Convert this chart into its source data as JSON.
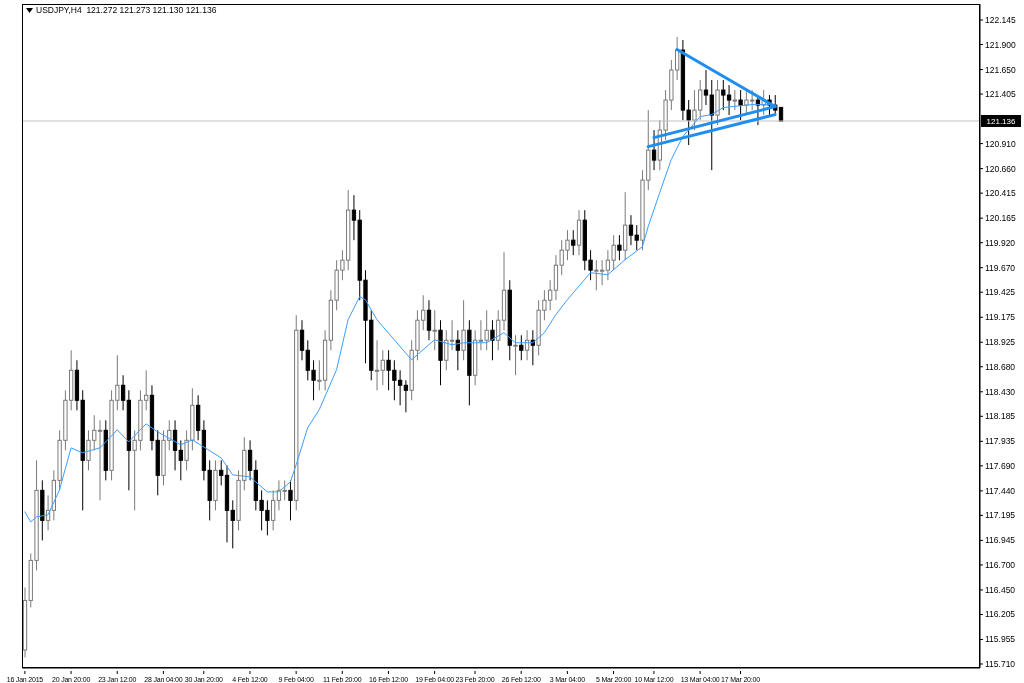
{
  "chart_data": {
    "type": "candlestick",
    "title": "USDJPY,H4  121.272 121.273 121.130 121.136",
    "categories": [
      "16 Jan 2015",
      null,
      null,
      null,
      null,
      null,
      null,
      null,
      "20 Jan 20:00",
      null,
      null,
      null,
      null,
      null,
      null,
      null,
      "23 Jan 12:00",
      null,
      null,
      null,
      null,
      null,
      null,
      null,
      "28 Jan 04:00",
      null,
      null,
      null,
      null,
      null,
      null,
      "30 Jan 20:00",
      null,
      null,
      null,
      null,
      null,
      null,
      null,
      "4 Feb 12:00",
      null,
      null,
      null,
      null,
      null,
      null,
      null,
      "9 Feb 04:00",
      null,
      null,
      null,
      null,
      null,
      null,
      null,
      "11 Feb 20:00",
      null,
      null,
      null,
      null,
      null,
      null,
      null,
      "16 Feb 12:00",
      null,
      null,
      null,
      null,
      null,
      null,
      null,
      "19 Feb 04:00",
      null,
      null,
      null,
      null,
      null,
      null,
      "23 Feb 20:00",
      null,
      null,
      null,
      null,
      null,
      null,
      null,
      "26 Feb 12:00",
      null,
      null,
      null,
      null,
      null,
      null,
      null,
      "3 Mar 04:00",
      null,
      null,
      null,
      null,
      null,
      null,
      null,
      "5 Mar 20:00",
      null,
      null,
      null,
      null,
      null,
      null,
      "10 Mar 12:00",
      null,
      null,
      null,
      null,
      null,
      null,
      null,
      "13 Mar 04:00",
      null,
      null,
      null,
      null,
      null,
      null,
      "17 Mar 20:00",
      null,
      null,
      null,
      null,
      null,
      null,
      null,
      null,
      null,
      null,
      null,
      null,
      null,
      null,
      null,
      null,
      null,
      null,
      null,
      null,
      null,
      null,
      null,
      null,
      null,
      null,
      null,
      null,
      null,
      null,
      null,
      null,
      null,
      null,
      null,
      null,
      null,
      null,
      null,
      null,
      null
    ],
    "ohlc": [
      [
        115.85,
        116.475,
        115.775,
        116.345
      ],
      [
        116.345,
        116.815,
        116.275,
        116.745
      ],
      [
        116.745,
        117.745,
        116.645,
        117.445
      ],
      [
        117.445,
        117.545,
        116.945,
        117.145
      ],
      [
        117.145,
        117.395,
        117.045,
        117.245
      ],
      [
        117.245,
        117.645,
        117.145,
        117.545
      ],
      [
        117.545,
        118.045,
        117.445,
        117.945
      ],
      [
        117.945,
        118.445,
        117.845,
        118.345
      ],
      [
        118.345,
        118.845,
        118.245,
        118.645
      ],
      [
        118.645,
        118.745,
        118.245,
        118.345
      ],
      [
        118.345,
        118.445,
        117.245,
        117.745
      ],
      [
        117.745,
        118.045,
        117.645,
        117.945
      ],
      [
        117.945,
        118.195,
        117.845,
        118.045
      ],
      [
        118.045,
        118.145,
        117.345,
        118.045
      ],
      [
        118.045,
        118.145,
        117.545,
        117.645
      ],
      [
        117.645,
        118.445,
        117.545,
        118.345
      ],
      [
        118.345,
        118.795,
        118.245,
        118.495
      ],
      [
        118.495,
        118.595,
        118.245,
        118.345
      ],
      [
        118.345,
        118.445,
        117.445,
        117.845
      ],
      [
        117.845,
        118.045,
        117.245,
        117.945
      ],
      [
        117.945,
        118.445,
        117.845,
        118.345
      ],
      [
        118.345,
        118.645,
        118.245,
        118.395
      ],
      [
        118.395,
        118.495,
        117.845,
        117.945
      ],
      [
        117.945,
        118.045,
        117.395,
        117.595
      ],
      [
        117.595,
        118.045,
        117.495,
        117.945
      ],
      [
        117.945,
        118.145,
        117.845,
        118.045
      ],
      [
        118.045,
        118.145,
        117.645,
        117.845
      ],
      [
        117.845,
        117.945,
        117.545,
        117.745
      ],
      [
        117.745,
        118.045,
        117.645,
        117.945
      ],
      [
        117.945,
        118.465,
        117.845,
        118.295
      ],
      [
        118.295,
        118.395,
        117.945,
        118.045
      ],
      [
        118.045,
        118.145,
        117.545,
        117.645
      ],
      [
        117.645,
        117.745,
        117.145,
        117.345
      ],
      [
        117.345,
        117.745,
        117.245,
        117.645
      ],
      [
        117.645,
        117.745,
        117.495,
        117.595
      ],
      [
        117.595,
        117.695,
        116.925,
        117.245
      ],
      [
        117.245,
        117.345,
        116.865,
        117.145
      ],
      [
        117.145,
        117.645,
        117.045,
        117.545
      ],
      [
        117.545,
        117.975,
        117.445,
        117.845
      ],
      [
        117.845,
        117.945,
        117.545,
        117.645
      ],
      [
        117.645,
        117.745,
        117.245,
        117.345
      ],
      [
        117.345,
        117.445,
        117.045,
        117.245
      ],
      [
        117.245,
        117.345,
        116.995,
        117.145
      ],
      [
        117.145,
        117.445,
        117.045,
        117.345
      ],
      [
        117.345,
        117.545,
        117.245,
        117.445
      ],
      [
        117.445,
        117.545,
        117.345,
        117.445
      ],
      [
        117.445,
        117.545,
        117.145,
        117.345
      ],
      [
        117.345,
        119.195,
        117.245,
        119.045
      ],
      [
        119.045,
        119.145,
        118.745,
        118.845
      ],
      [
        118.845,
        118.945,
        118.545,
        118.645
      ],
      [
        118.645,
        118.745,
        118.345,
        118.545
      ],
      [
        118.545,
        118.745,
        118.445,
        118.545
      ],
      [
        118.545,
        119.045,
        118.445,
        118.945
      ],
      [
        118.945,
        119.445,
        118.845,
        119.345
      ],
      [
        119.345,
        119.745,
        119.245,
        119.645
      ],
      [
        119.645,
        119.845,
        119.545,
        119.745
      ],
      [
        119.745,
        120.445,
        119.645,
        120.245
      ],
      [
        120.245,
        120.395,
        119.945,
        120.145
      ],
      [
        120.145,
        120.245,
        119.345,
        119.545
      ],
      [
        119.545,
        119.645,
        118.715,
        119.145
      ],
      [
        119.145,
        119.245,
        118.545,
        118.645
      ],
      [
        118.645,
        118.945,
        118.445,
        118.645
      ],
      [
        118.645,
        118.845,
        118.495,
        118.745
      ],
      [
        118.745,
        118.845,
        118.445,
        118.645
      ],
      [
        118.645,
        118.745,
        118.345,
        118.545
      ],
      [
        118.545,
        118.645,
        118.295,
        118.495
      ],
      [
        118.495,
        118.545,
        118.225,
        118.445
      ],
      [
        118.445,
        118.945,
        118.345,
        118.845
      ],
      [
        118.845,
        119.245,
        118.745,
        119.145
      ],
      [
        119.145,
        119.395,
        119.045,
        119.245
      ],
      [
        119.245,
        119.345,
        118.945,
        119.045
      ],
      [
        119.045,
        119.245,
        118.845,
        119.045
      ],
      [
        119.045,
        119.145,
        118.495,
        118.745
      ],
      [
        118.745,
        119.045,
        118.645,
        118.945
      ],
      [
        118.945,
        119.145,
        118.845,
        118.945
      ],
      [
        118.945,
        119.045,
        118.645,
        118.845
      ],
      [
        118.845,
        119.345,
        118.745,
        119.045
      ],
      [
        119.045,
        119.145,
        118.295,
        118.595
      ],
      [
        118.595,
        119.045,
        118.495,
        118.945
      ],
      [
        118.945,
        119.145,
        118.845,
        118.945
      ],
      [
        118.945,
        119.245,
        118.845,
        119.045
      ],
      [
        119.045,
        119.145,
        118.745,
        118.945
      ],
      [
        118.945,
        119.245,
        118.845,
        119.145
      ],
      [
        119.145,
        119.825,
        119.045,
        119.445
      ],
      [
        119.445,
        119.545,
        118.745,
        118.895
      ],
      [
        118.895,
        118.995,
        118.595,
        118.895
      ],
      [
        118.895,
        118.995,
        118.745,
        118.845
      ],
      [
        118.845,
        119.045,
        118.745,
        118.945
      ],
      [
        118.945,
        119.045,
        118.695,
        118.895
      ],
      [
        118.895,
        119.345,
        118.795,
        119.245
      ],
      [
        119.245,
        119.445,
        119.145,
        119.345
      ],
      [
        119.345,
        119.545,
        119.245,
        119.445
      ],
      [
        119.445,
        119.795,
        119.345,
        119.695
      ],
      [
        119.695,
        119.945,
        119.595,
        119.845
      ],
      [
        119.845,
        120.045,
        119.745,
        119.945
      ],
      [
        119.945,
        120.045,
        119.795,
        119.895
      ],
      [
        119.895,
        120.245,
        119.795,
        120.145
      ],
      [
        120.145,
        120.245,
        119.645,
        119.745
      ],
      [
        119.745,
        119.845,
        119.545,
        119.645
      ],
      [
        119.645,
        119.745,
        119.445,
        119.645
      ],
      [
        119.645,
        119.745,
        119.495,
        119.645
      ],
      [
        119.645,
        119.845,
        119.545,
        119.745
      ],
      [
        119.745,
        119.995,
        119.645,
        119.895
      ],
      [
        119.895,
        119.995,
        119.745,
        119.845
      ],
      [
        119.845,
        120.425,
        119.745,
        120.095
      ],
      [
        120.095,
        120.195,
        119.895,
        119.995
      ],
      [
        119.995,
        120.095,
        119.845,
        119.945
      ],
      [
        119.945,
        120.645,
        119.845,
        120.545
      ],
      [
        120.545,
        121.245,
        120.445,
        120.845
      ],
      [
        120.845,
        121.045,
        120.645,
        120.745
      ],
      [
        120.745,
        121.145,
        120.645,
        121.045
      ],
      [
        121.045,
        121.445,
        120.945,
        121.345
      ],
      [
        121.345,
        121.745,
        121.245,
        121.645
      ],
      [
        121.645,
        121.975,
        121.545,
        121.845
      ],
      [
        121.845,
        121.945,
        121.145,
        121.245
      ],
      [
        121.245,
        121.345,
        120.895,
        121.145
      ],
      [
        121.145,
        121.445,
        121.045,
        121.245
      ],
      [
        121.245,
        121.545,
        121.145,
        121.445
      ],
      [
        121.445,
        121.645,
        121.295,
        121.395
      ],
      [
        121.395,
        121.545,
        120.645,
        121.195
      ],
      [
        121.195,
        121.545,
        121.095,
        121.445
      ],
      [
        121.445,
        121.545,
        121.245,
        121.395
      ],
      [
        121.395,
        121.495,
        121.195,
        121.345
      ],
      [
        121.345,
        121.445,
        121.245,
        121.345
      ],
      [
        121.345,
        121.445,
        121.145,
        121.295
      ],
      [
        121.295,
        121.445,
        121.195,
        121.345
      ],
      [
        121.345,
        121.445,
        121.245,
        121.345
      ],
      [
        121.345,
        121.395,
        121.095,
        121.295
      ],
      [
        121.295,
        121.445,
        121.195,
        121.345
      ],
      [
        121.345,
        121.395,
        121.195,
        121.295
      ],
      [
        121.295,
        121.395,
        121.195,
        121.245
      ],
      [
        121.272,
        121.273,
        121.13,
        121.136
      ],
      null,
      null,
      null,
      null,
      null,
      null,
      null,
      null,
      null,
      null,
      null,
      null,
      null,
      null,
      null,
      null,
      null,
      null,
      null,
      null,
      null,
      null,
      null,
      null,
      null,
      null,
      null,
      null,
      null,
      null,
      null,
      null,
      null,
      null
    ],
    "series": [
      {
        "type": "line",
        "color": "#3d9eff",
        "values": [
          117.23,
          117.13,
          117.18,
          null,
          117.2,
          null,
          117.45,
          null,
          117.87,
          null,
          117.82,
          null,
          null,
          117.87,
          null,
          null,
          118.05,
          null,
          117.93,
          null,
          null,
          118.11,
          null,
          118.03,
          null,
          null,
          null,
          117.9,
          null,
          117.95,
          null,
          null,
          null,
          null,
          117.77,
          null,
          117.6,
          null,
          null,
          117.58,
          null,
          null,
          117.43,
          null,
          117.43,
          null,
          117.53,
          117.7,
          null,
          118.07,
          null,
          118.25,
          null,
          null,
          118.65,
          null,
          119.15,
          null,
          119.38,
          119.35,
          null,
          119.15,
          null,
          null,
          118.95,
          null,
          null,
          118.75,
          null,
          null,
          null,
          118.95,
          null,
          null,
          118.9,
          null,
          118.92,
          null,
          null,
          null,
          118.92,
          null,
          null,
          119.02,
          null,
          118.92,
          null,
          null,
          118.92,
          null,
          119.02,
          null,
          119.2,
          null,
          119.35,
          null,
          null,
          null,
          119.62,
          null,
          null,
          119.6,
          null,
          null,
          119.75,
          null,
          null,
          119.88,
          120.08,
          null,
          120.42,
          null,
          120.75,
          null,
          120.98,
          null,
          null,
          121.18,
          null,
          121.2,
          null,
          121.27,
          null,
          null,
          null,
          null,
          121.3,
          null,
          null,
          null,
          121.3,
          null,
          null,
          null,
          null,
          null,
          null,
          null,
          null,
          null,
          null,
          null,
          null,
          null,
          null,
          null,
          null,
          null,
          null,
          null,
          null,
          null,
          null,
          null,
          null,
          null,
          null,
          null,
          null,
          null,
          null,
          null,
          null,
          null,
          null,
          null
        ]
      },
      {
        "type": "line",
        "color": "#1e8ff0",
        "values": [
          null,
          null,
          null,
          null,
          null,
          null,
          null,
          null,
          null,
          null,
          null,
          null,
          null,
          null,
          null,
          null,
          null,
          null,
          null,
          null,
          null,
          null,
          null,
          null,
          null,
          null,
          null,
          null,
          null,
          null,
          null,
          null,
          null,
          null,
          null,
          null,
          null,
          null,
          null,
          null,
          null,
          null,
          null,
          null,
          null,
          null,
          null,
          null,
          null,
          null,
          null,
          null,
          null,
          null,
          null,
          null,
          null,
          null,
          null,
          null,
          null,
          null,
          null,
          null,
          null,
          null,
          null,
          null,
          null,
          null,
          null,
          null,
          null,
          null,
          null,
          null,
          null,
          null,
          null,
          null,
          null,
          null,
          null,
          null,
          null,
          null,
          null,
          null,
          null,
          null,
          null,
          null,
          null,
          null,
          null,
          null,
          null,
          null,
          null,
          null,
          null,
          null,
          null,
          null,
          null,
          null,
          null,
          null,
          null,
          null,
          null,
          null,
          null,
          121.85,
          null,
          null,
          null,
          null,
          null,
          null,
          null,
          null,
          null,
          null,
          null,
          null,
          null,
          null,
          null,
          null,
          121.28,
          null,
          null,
          null,
          null,
          null,
          null,
          null,
          null,
          null,
          null,
          null,
          null,
          null,
          null,
          null,
          null,
          null,
          null,
          null,
          null,
          null,
          null,
          null,
          null,
          null,
          null,
          null,
          null,
          null,
          null,
          null,
          null,
          null,
          null,
          null
        ]
      },
      {
        "type": "line",
        "color": "#1e8ff0",
        "values": [
          null,
          null,
          null,
          null,
          null,
          null,
          null,
          null,
          null,
          null,
          null,
          null,
          null,
          null,
          null,
          null,
          null,
          null,
          null,
          null,
          null,
          null,
          null,
          null,
          null,
          null,
          null,
          null,
          null,
          null,
          null,
          null,
          null,
          null,
          null,
          null,
          null,
          null,
          null,
          null,
          null,
          null,
          null,
          null,
          null,
          null,
          null,
          null,
          null,
          null,
          null,
          null,
          null,
          null,
          null,
          null,
          null,
          null,
          null,
          null,
          null,
          null,
          null,
          null,
          null,
          null,
          null,
          null,
          null,
          null,
          null,
          null,
          null,
          null,
          null,
          null,
          null,
          null,
          null,
          null,
          null,
          null,
          null,
          null,
          null,
          null,
          null,
          null,
          null,
          null,
          null,
          null,
          null,
          null,
          null,
          null,
          null,
          null,
          null,
          null,
          null,
          null,
          null,
          null,
          null,
          null,
          null,
          null,
          null,
          120.97,
          null,
          null,
          null,
          null,
          null,
          null,
          null,
          null,
          null,
          null,
          null,
          null,
          null,
          null,
          null,
          null,
          null,
          null,
          null,
          null,
          121.28,
          null,
          null,
          null,
          null,
          null,
          null,
          null,
          null,
          null,
          null,
          null,
          null,
          null,
          null,
          null,
          null,
          null,
          null,
          null,
          null,
          null,
          null,
          null,
          null,
          null,
          null,
          null,
          null,
          null,
          null,
          null,
          null,
          null,
          null,
          null
        ]
      },
      {
        "type": "line",
        "color": "#1e8ff0",
        "values": [
          null,
          null,
          null,
          null,
          null,
          null,
          null,
          null,
          null,
          null,
          null,
          null,
          null,
          null,
          null,
          null,
          null,
          null,
          null,
          null,
          null,
          null,
          null,
          null,
          null,
          null,
          null,
          null,
          null,
          null,
          null,
          null,
          null,
          null,
          null,
          null,
          null,
          null,
          null,
          null,
          null,
          null,
          null,
          null,
          null,
          null,
          null,
          null,
          null,
          null,
          null,
          null,
          null,
          null,
          null,
          null,
          null,
          null,
          null,
          null,
          null,
          null,
          null,
          null,
          null,
          null,
          null,
          null,
          null,
          null,
          null,
          null,
          null,
          null,
          null,
          null,
          null,
          null,
          null,
          null,
          null,
          null,
          null,
          null,
          null,
          null,
          null,
          null,
          null,
          null,
          null,
          null,
          null,
          null,
          null,
          null,
          null,
          null,
          null,
          null,
          null,
          null,
          null,
          null,
          null,
          null,
          null,
          null,
          120.88,
          null,
          null,
          null,
          null,
          null,
          null,
          null,
          null,
          null,
          null,
          null,
          null,
          null,
          null,
          null,
          null,
          null,
          null,
          null,
          null,
          null,
          121.2,
          null,
          null,
          null,
          null,
          null,
          null,
          null,
          null,
          null,
          null,
          null,
          null,
          null,
          null,
          null,
          null,
          null,
          null,
          null,
          null,
          null,
          null,
          null,
          null,
          null,
          null,
          null,
          null,
          null,
          null,
          null,
          null,
          null,
          null,
          null
        ]
      }
    ],
    "ylim": [
      115.67,
      122.305
    ],
    "yticks": [
      {
        "value": 115.71,
        "label": "115.710"
      },
      {
        "value": 115.955,
        "label": "115.955"
      },
      {
        "value": 116.205,
        "label": "116.205"
      },
      {
        "value": 116.45,
        "label": "116.450"
      },
      {
        "value": 116.7,
        "label": "116.700"
      },
      {
        "value": 116.945,
        "label": "116.945"
      },
      {
        "value": 117.195,
        "label": "117.195"
      },
      {
        "value": 117.44,
        "label": "117.440"
      },
      {
        "value": 117.69,
        "label": "117.690"
      },
      {
        "value": 117.935,
        "label": "117.935"
      },
      {
        "value": 118.185,
        "label": "118.185"
      },
      {
        "value": 118.43,
        "label": "118.430"
      },
      {
        "value": 118.68,
        "label": "118.680"
      },
      {
        "value": 118.925,
        "label": "118.925"
      },
      {
        "value": 119.175,
        "label": "119.175"
      },
      {
        "value": 119.425,
        "label": "119.425"
      },
      {
        "value": 119.67,
        "label": "119.670"
      },
      {
        "value": 119.92,
        "label": "119.920"
      },
      {
        "value": 120.165,
        "label": "120.165"
      },
      {
        "value": 120.415,
        "label": "120.415"
      },
      {
        "value": 120.66,
        "label": "120.660"
      },
      {
        "value": 120.91,
        "label": "120.910"
      },
      {
        "value": 121.405,
        "label": "121.405"
      },
      {
        "value": 121.65,
        "label": "121.650"
      },
      {
        "value": 121.9,
        "label": "121.900"
      },
      {
        "value": 122.145,
        "label": "122.145"
      }
    ],
    "ref_lines": [
      {
        "axis": "y",
        "value": 121.136,
        "label": "121.136",
        "color": "#c0c0c0"
      }
    ]
  }
}
